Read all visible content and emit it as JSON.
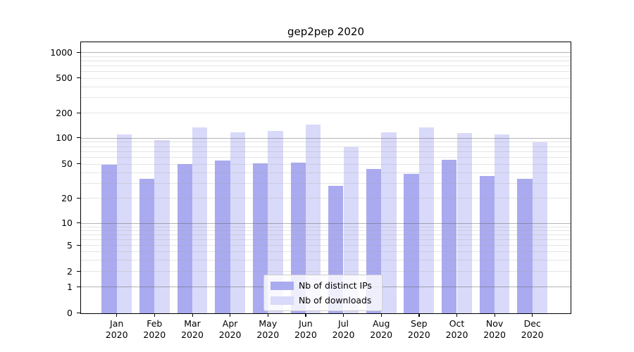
{
  "title": "gep2pep 2020",
  "legend": {
    "items": [
      {
        "label": "Nb of distinct IPs",
        "color": "#aaaaf0"
      },
      {
        "label": "Nb of downloads",
        "color": "#d9d9f9"
      }
    ]
  },
  "chart_data": {
    "type": "bar",
    "title": "gep2pep 2020",
    "categories": [
      "Jan 2020",
      "Feb 2020",
      "Mar 2020",
      "Apr 2020",
      "May 2020",
      "Jun 2020",
      "Jul 2020",
      "Aug 2020",
      "Sep 2020",
      "Oct 2020",
      "Nov 2020",
      "Dec 2020"
    ],
    "x_tick_line1": [
      "Jan",
      "Feb",
      "Mar",
      "Apr",
      "May",
      "Jun",
      "Jul",
      "Aug",
      "Sep",
      "Oct",
      "Nov",
      "Dec"
    ],
    "x_tick_line2": [
      "2020",
      "2020",
      "2020",
      "2020",
      "2020",
      "2020",
      "2020",
      "2020",
      "2020",
      "2020",
      "2020",
      "2020"
    ],
    "series": [
      {
        "name": "Nb of distinct IPs",
        "color": "#aaaaf0",
        "values": [
          50,
          34,
          51,
          56,
          52,
          53,
          28,
          44,
          39,
          57,
          37,
          34
        ]
      },
      {
        "name": "Nb of downloads",
        "color": "#d9d9f9",
        "values": [
          111,
          95,
          137,
          118,
          124,
          148,
          80,
          119,
          137,
          117,
          112,
          90
        ]
      }
    ],
    "xlabel": "",
    "ylabel": "",
    "yscale": "log-with-zero",
    "yticks": [
      0,
      1,
      2,
      5,
      10,
      20,
      50,
      100,
      200,
      500,
      1000
    ],
    "ylim": [
      0,
      1300
    ],
    "grid": true,
    "legend_position": "lower center (inside plot)"
  }
}
